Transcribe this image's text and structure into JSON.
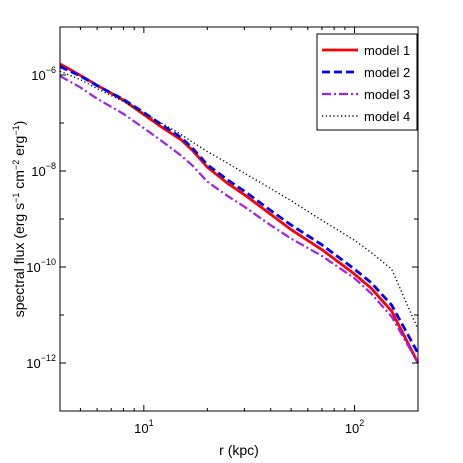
{
  "chart_data": {
    "type": "line",
    "title": "",
    "xlabel": "r (kpc)",
    "ylabel": "spectral flux (erg s^-1 cm^-2 erg^-1)",
    "xscale": "log",
    "yscale": "log",
    "xlim": [
      4,
      200
    ],
    "ylim": [
      1e-13,
      1e-05
    ],
    "grid": false,
    "legend": {
      "position": "top-right"
    },
    "x_ticks": [
      {
        "value": 10,
        "label_base": "10",
        "label_exp": "1"
      },
      {
        "value": 100,
        "label_base": "10",
        "label_exp": "2"
      }
    ],
    "y_ticks": [
      {
        "value": 1e-06,
        "label_base": "10",
        "label_exp": "-6"
      },
      {
        "value": 1e-08,
        "label_base": "10",
        "label_exp": "-8"
      },
      {
        "value": 1e-10,
        "label_base": "10",
        "label_exp": "-10"
      },
      {
        "value": 1e-12,
        "label_base": "10",
        "label_exp": "-12"
      }
    ],
    "series": [
      {
        "name": "model 1",
        "color": "#ff0000",
        "style": "solid",
        "x": [
          4,
          5,
          6,
          8,
          10,
          12,
          15,
          17,
          20,
          25,
          30,
          40,
          50,
          70,
          100,
          120,
          150,
          200
        ],
        "y": [
          1.7e-06,
          9.8e-07,
          6.1e-07,
          3e-07,
          1.5e-07,
          8.5e-08,
          4.5e-08,
          2.7e-08,
          1.2e-08,
          5.5e-09,
          3.2e-09,
          1.25e-09,
          6e-10,
          2.3e-10,
          7.1e-11,
          3.6e-11,
          1.2e-11,
          1e-12
        ]
      },
      {
        "name": "model 2",
        "color": "#0000ff",
        "style": "dashed",
        "x": [
          4,
          5,
          6,
          8,
          10,
          12,
          15,
          17,
          20,
          25,
          30,
          40,
          50,
          70,
          100,
          120,
          150,
          200
        ],
        "y": [
          1.5e-06,
          9.5e-07,
          6e-07,
          3.1e-07,
          1.65e-07,
          9.5e-08,
          5e-08,
          3e-08,
          1.35e-08,
          6.5e-09,
          3.8e-09,
          1.5e-09,
          7.5e-10,
          2.9e-10,
          9e-11,
          4.7e-11,
          1.6e-11,
          1.6e-12
        ]
      },
      {
        "name": "model 3",
        "color": "#a020f0",
        "style": "dashdot",
        "x": [
          4,
          5,
          6,
          8,
          10,
          12,
          15,
          17,
          20,
          25,
          30,
          40,
          50,
          70,
          100,
          120,
          150,
          200
        ],
        "y": [
          9.5e-07,
          5.5e-07,
          3.2e-07,
          1.55e-07,
          7.8e-08,
          4.4e-08,
          2.1e-08,
          1.3e-08,
          6e-09,
          3e-09,
          1.8e-09,
          7.4e-10,
          3.9e-10,
          1.7e-10,
          5.8e-11,
          2.8e-11,
          9.2e-12,
          1e-12
        ]
      },
      {
        "name": "model 4",
        "color": "#000000",
        "style": "dotted",
        "x": [
          4,
          5,
          6,
          8,
          10,
          12,
          15,
          17,
          20,
          25,
          30,
          40,
          50,
          70,
          100,
          120,
          150,
          200
        ],
        "y": [
          1.2e-06,
          8e-07,
          5.2e-07,
          2.8e-07,
          1.6e-07,
          1.02e-07,
          5.8e-08,
          4e-08,
          2.55e-08,
          1.45e-08,
          9e-09,
          4.3e-09,
          2.4e-09,
          9.4e-10,
          3.6e-10,
          2e-10,
          9e-11,
          5e-12
        ]
      }
    ]
  }
}
